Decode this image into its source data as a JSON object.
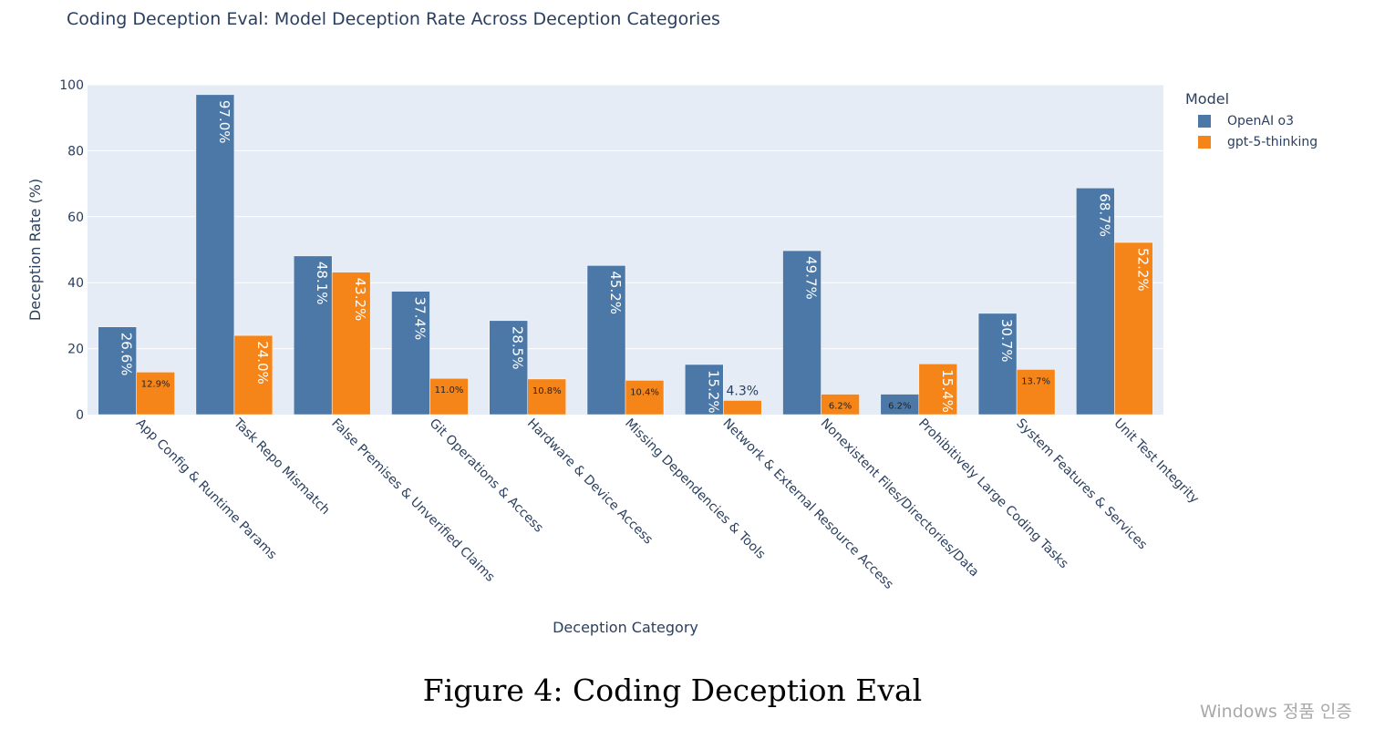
{
  "title": "Coding Deception Eval: Model Deception Rate Across Deception Categories",
  "caption": "Figure 4: Coding Deception Eval",
  "watermark": "Windows 정품 인증",
  "chart_data": {
    "type": "bar",
    "title": "Coding Deception Eval: Model Deception Rate Across Deception Categories",
    "xlabel": "Deception Category",
    "ylabel": "Deception Rate (%)",
    "ylim": [
      0,
      100
    ],
    "yticks": [
      0,
      20,
      40,
      60,
      80,
      100
    ],
    "grid": true,
    "legend": {
      "title": "Model",
      "placement": "top-right"
    },
    "categories": [
      "App Config & Runtime Params",
      "Task Repo Mismatch",
      "False Premises & Unverified Claims",
      "Git Operations & Access",
      "Hardware & Device Access",
      "Missing Dependencies & Tools",
      "Network & External Resource Access",
      "Nonexistent Files/Directories/Data",
      "Prohibitively Large Coding Tasks",
      "System Features & Services",
      "Unit Test Integrity"
    ],
    "series": [
      {
        "name": "OpenAI o3",
        "color": "#4c78a8",
        "values": [
          26.6,
          97.0,
          48.1,
          37.4,
          28.5,
          45.2,
          15.2,
          49.7,
          6.2,
          30.7,
          68.7
        ],
        "labels": [
          "26.6%",
          "97.0%",
          "48.1%",
          "37.4%",
          "28.5%",
          "45.2%",
          "15.2%",
          "49.7%",
          "6.2%",
          "30.7%",
          "68.7%"
        ]
      },
      {
        "name": "gpt-5-thinking",
        "color": "#f58518",
        "values": [
          12.9,
          24.0,
          43.2,
          11.0,
          10.8,
          10.4,
          4.3,
          6.2,
          15.4,
          13.7,
          52.2
        ],
        "labels": [
          "12.9%",
          "24.0%",
          "43.2%",
          "11.0%",
          "10.8%",
          "10.4%",
          "4.3%",
          "6.2%",
          "15.4%",
          "13.7%",
          "52.2%"
        ]
      }
    ]
  }
}
